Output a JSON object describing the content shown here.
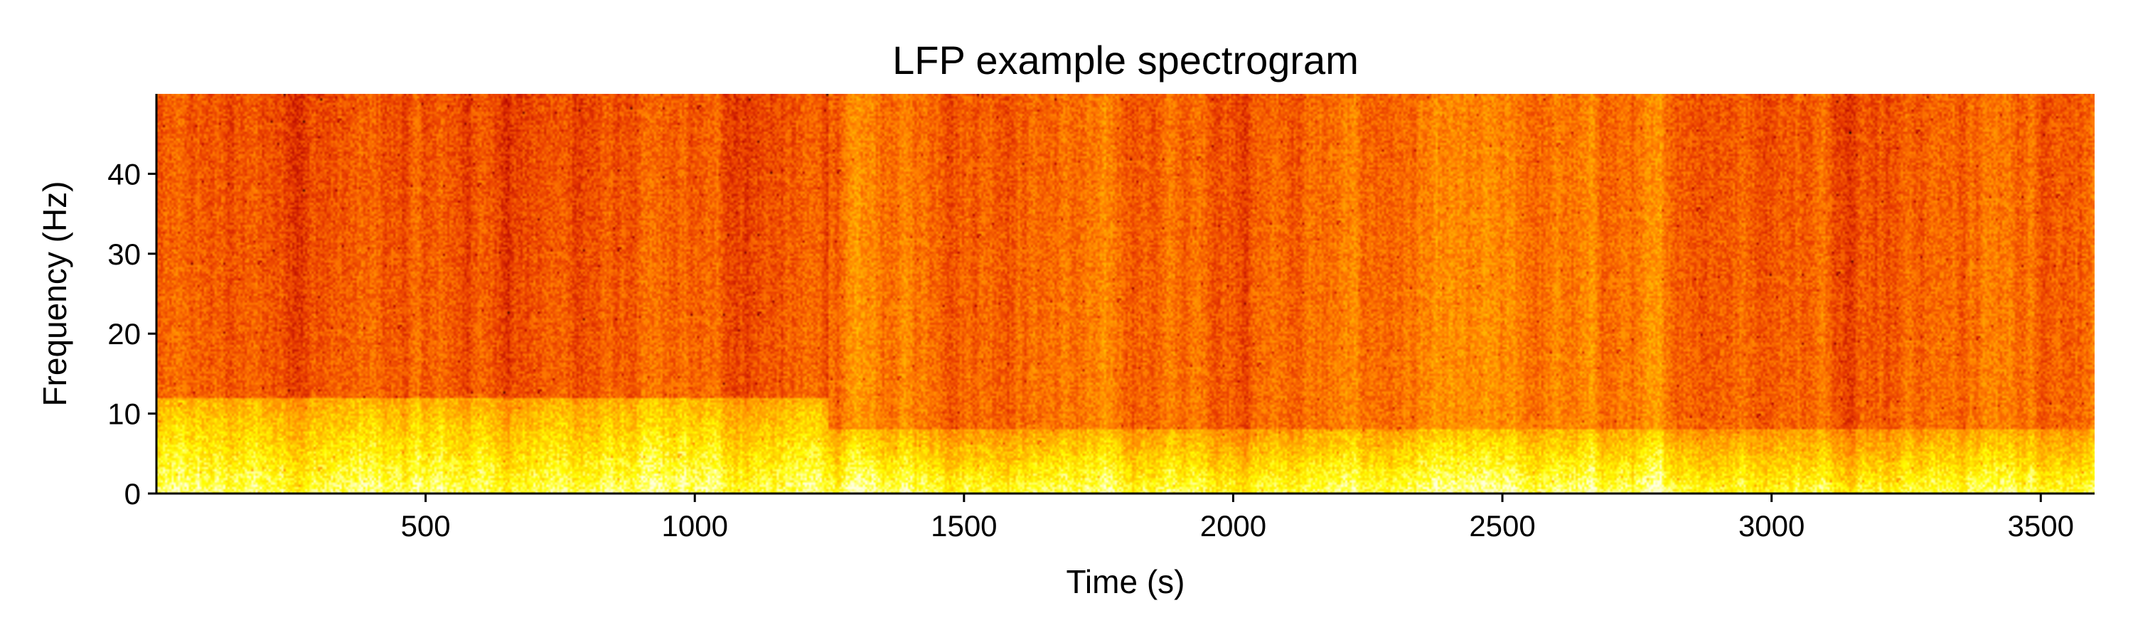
{
  "chart_data": {
    "type": "heatmap",
    "title": "LFP example spectrogram",
    "xlabel": "Time (s)",
    "ylabel": "Frequency (Hz)",
    "xlim": [
      0,
      3600
    ],
    "ylim": [
      0,
      50
    ],
    "xticks": [
      500,
      1000,
      1500,
      2000,
      2500,
      3000,
      3500
    ],
    "xtick_labels": [
      "500",
      "1000",
      "1500",
      "2000",
      "2500",
      "3000",
      "3500"
    ],
    "yticks": [
      0,
      10,
      20,
      30,
      40
    ],
    "ytick_labels": [
      "0",
      "10",
      "20",
      "30",
      "40"
    ],
    "grid": false,
    "colormap": "hot",
    "colormap_stops": [
      "#000000",
      "#b00000",
      "#e83a00",
      "#ff7a00",
      "#ffb800",
      "#ffff00",
      "#ffffe0"
    ],
    "regions": [
      {
        "t_start": 0,
        "t_end": 1250,
        "low_freq_band_top_hz": 12,
        "high_freq_level": "dark red-orange"
      },
      {
        "t_start": 1250,
        "t_end": 3600,
        "low_freq_band_top_hz": 8,
        "high_freq_level": "orange"
      }
    ]
  }
}
